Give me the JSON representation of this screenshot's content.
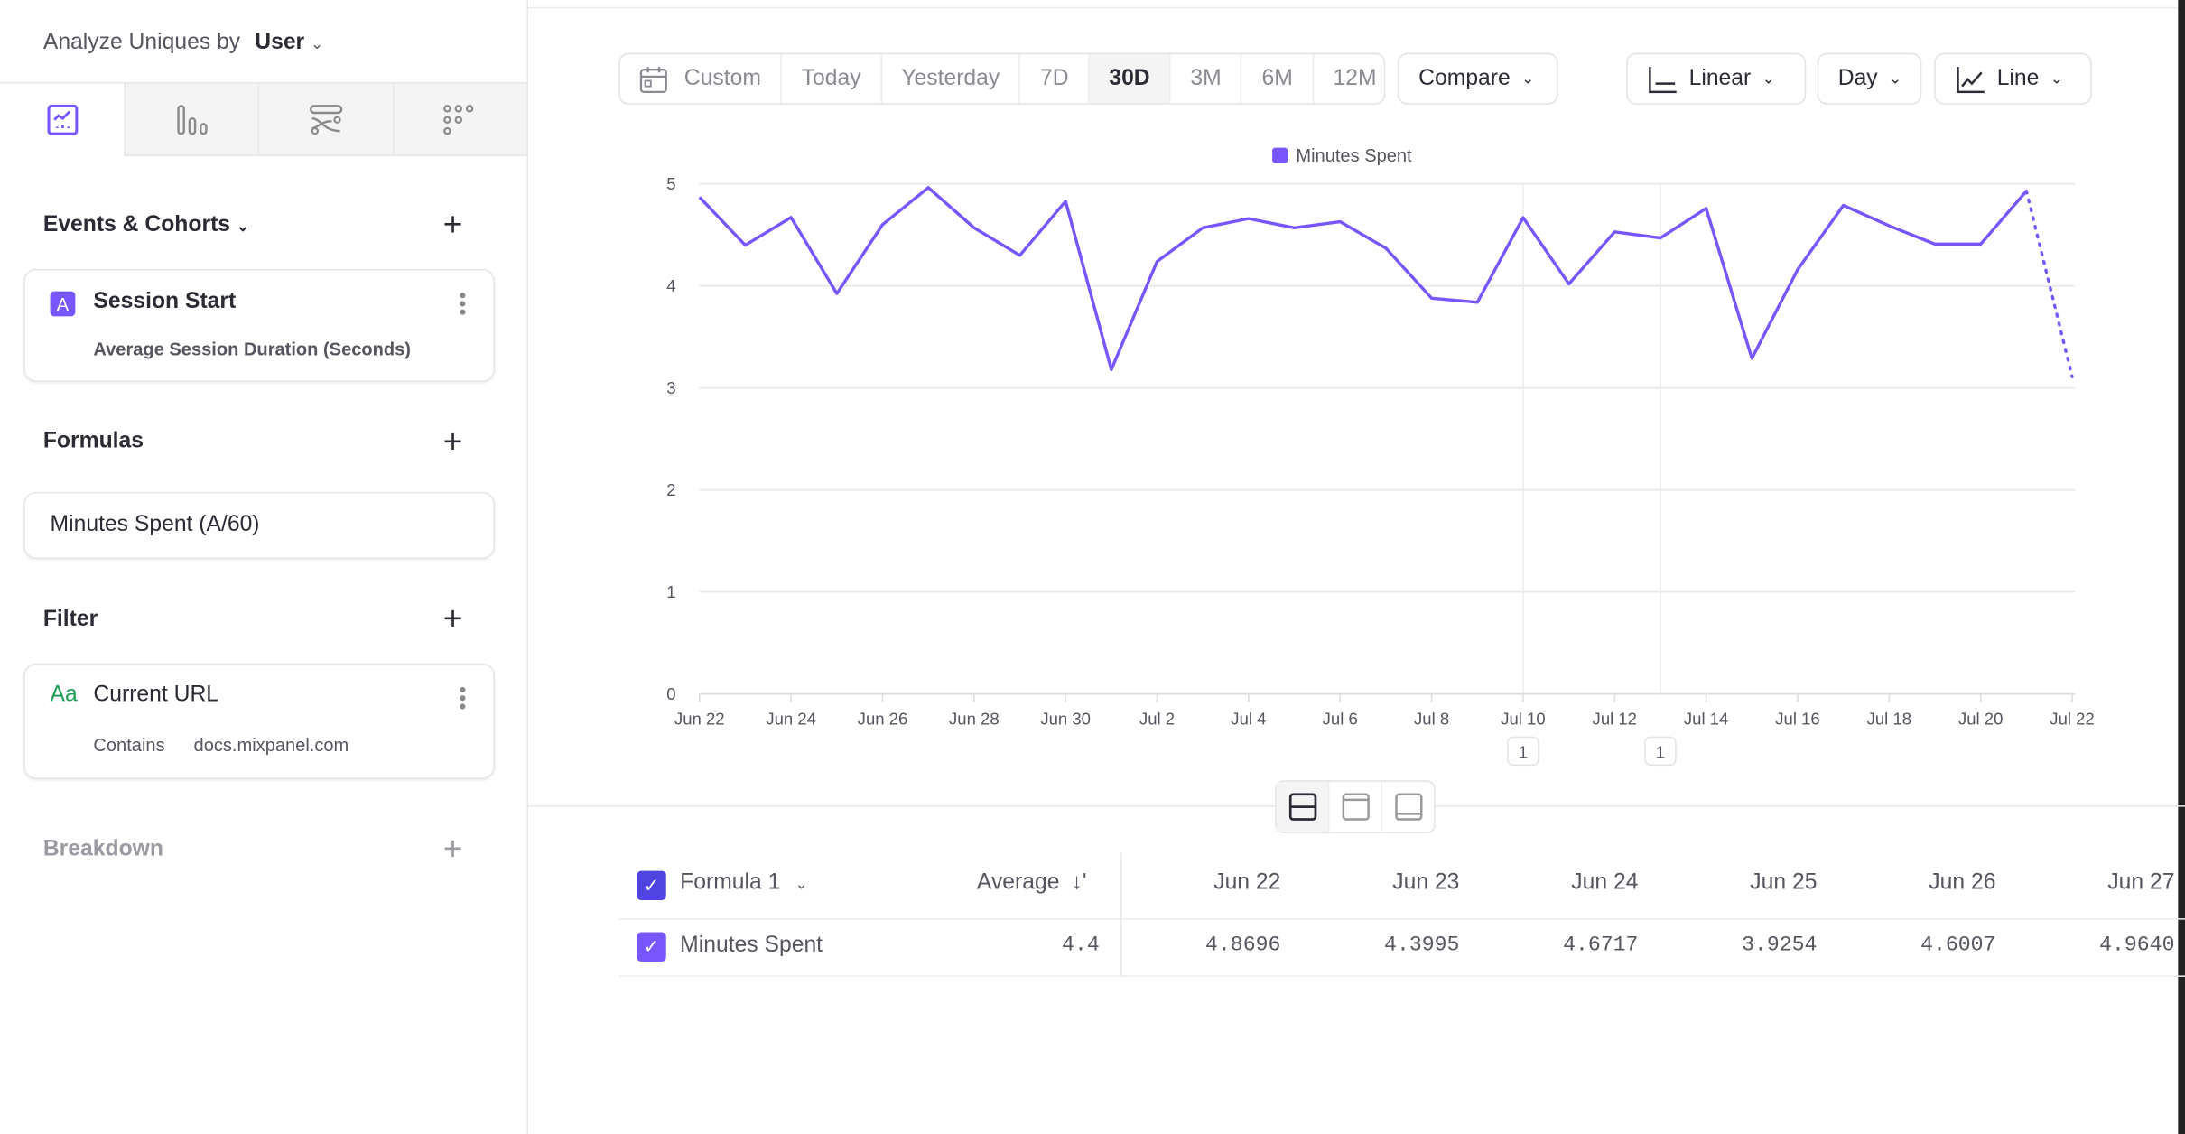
{
  "sidebar": {
    "analyze_label": "Analyze Uniques by",
    "analyze_value": "User",
    "tabs": [
      {
        "icon": "insights-chart-icon",
        "active": true
      },
      {
        "icon": "funnels-bars-icon"
      },
      {
        "icon": "flows-icon"
      },
      {
        "icon": "retention-dots-icon"
      }
    ],
    "events_title": "Events & Cohorts",
    "event": {
      "badge": "A",
      "name": "Session Start",
      "measure": "Average Session Duration (Seconds)"
    },
    "formulas_title": "Formulas",
    "formula": "Minutes Spent (A/60)",
    "filter_title": "Filter",
    "filter": {
      "badge": "Aa",
      "property": "Current URL",
      "operator": "Contains",
      "value": "docs.mixpanel.com"
    },
    "breakdown_title": "Breakdown"
  },
  "toolbar": {
    "date_ranges": [
      "Custom",
      "Today",
      "Yesterday",
      "7D",
      "30D",
      "3M",
      "6M",
      "12M"
    ],
    "selected_range": "30D",
    "compare": "Compare",
    "scale": "Linear",
    "interval": "Day",
    "chart_type": "Line"
  },
  "colors": {
    "accent": "#7856ff",
    "checkbox_header": "#4f44e0",
    "aa_green": "#1f9d55"
  },
  "chart_data": {
    "type": "line",
    "legend": [
      "Minutes Spent"
    ],
    "legend_placement": "top",
    "grid": true,
    "ylim": [
      0,
      5
    ],
    "y_ticks": [
      "0",
      "1",
      "2",
      "3",
      "4",
      "5"
    ],
    "x_tick_labels": [
      "Jun 22",
      "Jun 24",
      "Jun 26",
      "Jun 28",
      "Jun 30",
      "Jul 2",
      "Jul 4",
      "Jul 6",
      "Jul 8",
      "Jul 10",
      "Jul 12",
      "Jul 14",
      "Jul 16",
      "Jul 18",
      "Jul 20",
      "Jul 22"
    ],
    "series": [
      {
        "name": "Minutes Spent",
        "x": [
          "Jun 22",
          "Jun 23",
          "Jun 24",
          "Jun 25",
          "Jun 26",
          "Jun 27",
          "Jun 28",
          "Jun 29",
          "Jun 30",
          "Jul 1",
          "Jul 2",
          "Jul 3",
          "Jul 4",
          "Jul 5",
          "Jul 6",
          "Jul 7",
          "Jul 8",
          "Jul 9",
          "Jul 10",
          "Jul 11",
          "Jul 12",
          "Jul 13",
          "Jul 14",
          "Jul 15",
          "Jul 16",
          "Jul 17",
          "Jul 18",
          "Jul 19",
          "Jul 20",
          "Jul 21",
          "Jul 22"
        ],
        "values": [
          4.8696,
          4.3995,
          4.6717,
          3.9254,
          4.6007,
          4.964,
          4.57,
          4.3,
          4.83,
          3.18,
          4.24,
          4.57,
          4.66,
          4.57,
          4.63,
          4.37,
          3.88,
          3.84,
          4.67,
          4.02,
          4.53,
          4.47,
          4.76,
          3.29,
          4.16,
          4.79,
          4.59,
          4.41,
          4.41,
          4.93,
          3.11
        ],
        "incomplete_last_point": true
      }
    ],
    "annotations": [
      {
        "date": "Jul 10",
        "label": "1"
      },
      {
        "date": "Jul 13",
        "label": "1"
      }
    ]
  },
  "table": {
    "header_label": "Formula 1",
    "avg_label": "Average",
    "columns": [
      "Jun 22",
      "Jun 23",
      "Jun 24",
      "Jun 25",
      "Jun 26",
      "Jun 27"
    ],
    "row": {
      "name": "Minutes Spent",
      "average": "4.4",
      "values": [
        "4.8696",
        "4.3995",
        "4.6717",
        "3.9254",
        "4.6007",
        "4.9640"
      ]
    }
  }
}
